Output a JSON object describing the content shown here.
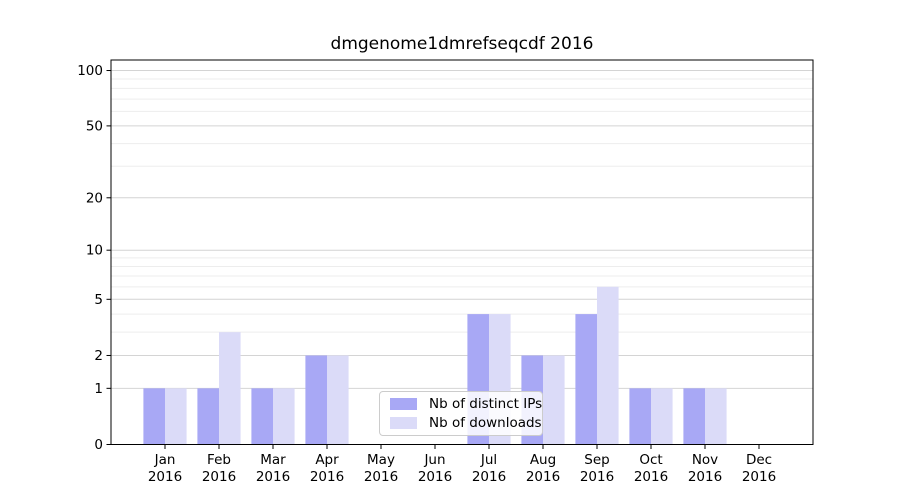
{
  "chart_data": {
    "type": "bar",
    "title": "dmgenome1dmrefseqcdf 2016",
    "categories": [
      "Jan",
      "Feb",
      "Mar",
      "Apr",
      "May",
      "Jun",
      "Jul",
      "Aug",
      "Sep",
      "Oct",
      "Nov",
      "Dec"
    ],
    "x_sub_label": "2016",
    "series": [
      {
        "name": "Nb of distinct IPs",
        "color": "#a8a8f5",
        "values": [
          1,
          1,
          1,
          2,
          0,
          0,
          4,
          2,
          4,
          1,
          1,
          0
        ]
      },
      {
        "name": "Nb of downloads",
        "color": "#dbdbf8",
        "values": [
          1,
          3,
          1,
          2,
          0,
          0,
          4,
          2,
          6,
          1,
          1,
          0
        ]
      }
    ],
    "y_axis": {
      "scale": "log1p",
      "ticks": [
        0,
        1,
        2,
        5,
        10,
        20,
        50,
        100
      ],
      "minor_ticks": [
        3,
        4,
        6,
        7,
        8,
        9,
        30,
        40,
        60,
        70,
        80,
        90
      ],
      "range": [
        0,
        114
      ]
    },
    "xlabel": "",
    "ylabel": "",
    "grid": true,
    "legend_position": "lower center"
  }
}
